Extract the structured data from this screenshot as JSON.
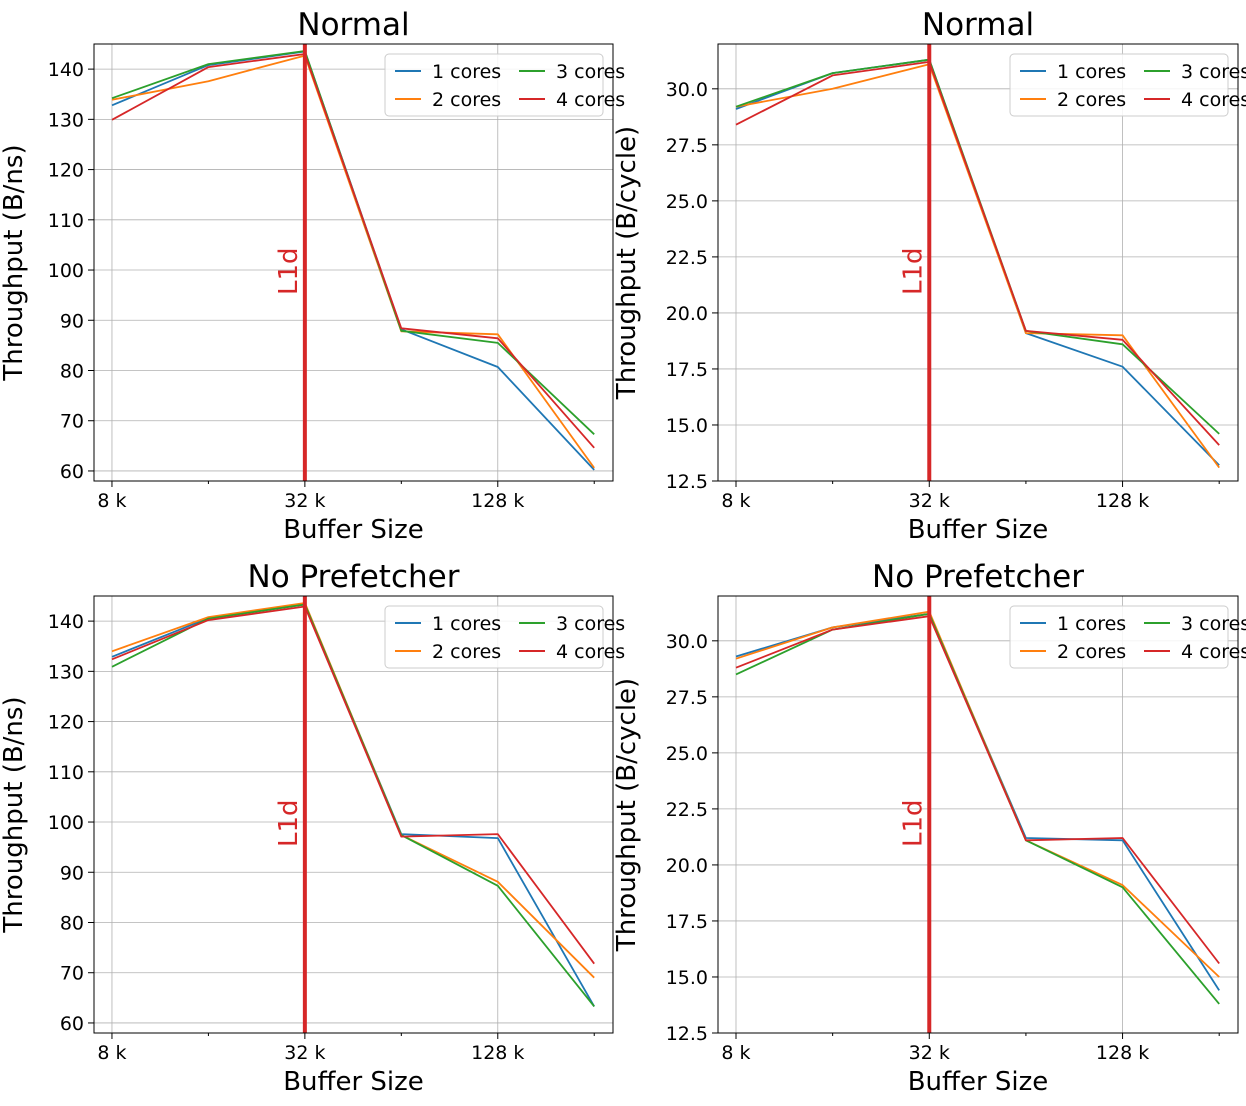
{
  "chart_data": [
    {
      "type": "line",
      "title": "Normal",
      "xlabel": "Buffer Size",
      "ylabel": "Throughput (B/ns)",
      "x_scale": "log2",
      "x": [
        8192,
        16384,
        32768,
        65536,
        131072,
        262144
      ],
      "xticks": [
        8192,
        32768,
        131072
      ],
      "xtick_labels": [
        "8 k",
        "32 k",
        "128 k"
      ],
      "minor_xticks": [
        16384,
        65536,
        262144
      ],
      "yticks": [
        60,
        70,
        80,
        90,
        100,
        110,
        120,
        130,
        140
      ],
      "xlim": [
        7200,
        300000
      ],
      "ylim": [
        58,
        145
      ],
      "grid": true,
      "legend": "top-right",
      "legend_columns": 2,
      "series": [
        {
          "name": "1 cores",
          "color": "#1f77b4",
          "values": [
            132.8,
            140.8,
            143.5,
            88.2,
            80.7,
            60.2
          ]
        },
        {
          "name": "2 cores",
          "color": "#ff7f0e",
          "values": [
            133.9,
            137.6,
            142.7,
            87.8,
            87.2,
            60.6
          ]
        },
        {
          "name": "3 cores",
          "color": "#2ca02c",
          "values": [
            134.2,
            141.0,
            143.6,
            87.9,
            85.5,
            67.3
          ]
        },
        {
          "name": "4 cores",
          "color": "#d62728",
          "values": [
            129.9,
            140.4,
            143.0,
            88.4,
            86.4,
            64.6
          ]
        }
      ],
      "annotation": {
        "text": "L1d",
        "x": 32768,
        "color": "#d62728"
      }
    },
    {
      "type": "line",
      "title": "Normal",
      "xlabel": "Buffer Size",
      "ylabel": "Throughput (B/cycle)",
      "x_scale": "log2",
      "x": [
        8192,
        16384,
        32768,
        65536,
        131072,
        262144
      ],
      "xticks": [
        8192,
        32768,
        131072
      ],
      "xtick_labels": [
        "8 k",
        "32 k",
        "128 k"
      ],
      "minor_xticks": [
        16384,
        65536,
        262144
      ],
      "yticks": [
        12.5,
        15.0,
        17.5,
        20.0,
        22.5,
        25.0,
        27.5,
        30.0
      ],
      "ytick_labels": [
        "12.5",
        "15.0",
        "17.5",
        "20.0",
        "22.5",
        "25.0",
        "27.5",
        "30.0"
      ],
      "xlim": [
        7200,
        300000
      ],
      "ylim": [
        12.5,
        32.0
      ],
      "grid": true,
      "legend": "top-right",
      "legend_columns": 2,
      "series": [
        {
          "name": "1 cores",
          "color": "#1f77b4",
          "values": [
            29.1,
            30.7,
            31.3,
            19.1,
            17.6,
            13.2
          ]
        },
        {
          "name": "2 cores",
          "color": "#ff7f0e",
          "values": [
            29.2,
            30.0,
            31.1,
            19.1,
            19.0,
            13.1
          ]
        },
        {
          "name": "3 cores",
          "color": "#2ca02c",
          "values": [
            29.2,
            30.7,
            31.3,
            19.2,
            18.6,
            14.6
          ]
        },
        {
          "name": "4 cores",
          "color": "#d62728",
          "values": [
            28.4,
            30.6,
            31.2,
            19.2,
            18.8,
            14.1
          ]
        }
      ],
      "annotation": {
        "text": "L1d",
        "x": 32768,
        "color": "#d62728"
      }
    },
    {
      "type": "line",
      "title": "No Prefetcher",
      "xlabel": "Buffer Size",
      "ylabel": "Throughput (B/ns)",
      "x_scale": "log2",
      "x": [
        8192,
        16384,
        32768,
        65536,
        131072,
        262144
      ],
      "xticks": [
        8192,
        32768,
        131072
      ],
      "xtick_labels": [
        "8 k",
        "32 k",
        "128 k"
      ],
      "minor_xticks": [
        16384,
        65536,
        262144
      ],
      "yticks": [
        60,
        70,
        80,
        90,
        100,
        110,
        120,
        130,
        140
      ],
      "xlim": [
        7200,
        300000
      ],
      "ylim": [
        58,
        145
      ],
      "grid": true,
      "legend": "top-right",
      "legend_columns": 2,
      "series": [
        {
          "name": "1 cores",
          "color": "#1f77b4",
          "values": [
            132.9,
            140.6,
            143.3,
            97.6,
            96.8,
            63.3
          ]
        },
        {
          "name": "2 cores",
          "color": "#ff7f0e",
          "values": [
            134.0,
            140.8,
            143.6,
            97.4,
            88.1,
            69.0
          ]
        },
        {
          "name": "3 cores",
          "color": "#2ca02c",
          "values": [
            130.9,
            140.5,
            143.3,
            97.4,
            87.3,
            63.3
          ]
        },
        {
          "name": "4 cores",
          "color": "#d62728",
          "values": [
            132.4,
            140.2,
            142.9,
            97.1,
            97.6,
            71.8
          ]
        }
      ],
      "annotation": {
        "text": "L1d",
        "x": 32768,
        "color": "#d62728"
      }
    },
    {
      "type": "line",
      "title": "No Prefetcher",
      "xlabel": "Buffer Size",
      "ylabel": "Throughput (B/cycle)",
      "x_scale": "log2",
      "x": [
        8192,
        16384,
        32768,
        65536,
        131072,
        262144
      ],
      "xticks": [
        8192,
        32768,
        131072
      ],
      "xtick_labels": [
        "8 k",
        "32 k",
        "128 k"
      ],
      "minor_xticks": [
        16384,
        65536,
        262144
      ],
      "yticks": [
        12.5,
        15.0,
        17.5,
        20.0,
        22.5,
        25.0,
        27.5,
        30.0
      ],
      "ytick_labels": [
        "12.5",
        "15.0",
        "17.5",
        "20.0",
        "22.5",
        "25.0",
        "27.5",
        "30.0"
      ],
      "xlim": [
        7200,
        300000
      ],
      "ylim": [
        12.5,
        32.0
      ],
      "grid": true,
      "legend": "top-right",
      "legend_columns": 2,
      "series": [
        {
          "name": "1 cores",
          "color": "#1f77b4",
          "values": [
            29.3,
            30.6,
            31.2,
            21.2,
            21.1,
            14.4
          ]
        },
        {
          "name": "2 cores",
          "color": "#ff7f0e",
          "values": [
            29.2,
            30.6,
            31.3,
            21.1,
            19.1,
            15.0
          ]
        },
        {
          "name": "3 cores",
          "color": "#2ca02c",
          "values": [
            28.5,
            30.5,
            31.2,
            21.1,
            19.0,
            13.8
          ]
        },
        {
          "name": "4 cores",
          "color": "#d62728",
          "values": [
            28.8,
            30.5,
            31.1,
            21.1,
            21.2,
            15.6
          ]
        }
      ],
      "annotation": {
        "text": "L1d",
        "x": 32768,
        "color": "#d62728"
      }
    }
  ]
}
